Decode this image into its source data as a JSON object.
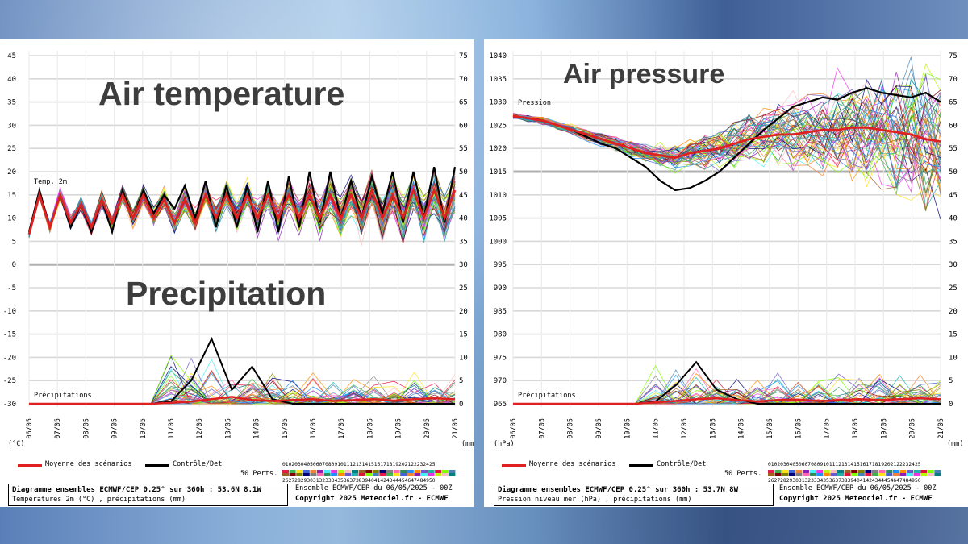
{
  "chart_data": [
    {
      "type": "line",
      "overlay_title_top": "Air temperature",
      "overlay_title_bottom": "Precipitation",
      "series_label_top": "Temp. 2m",
      "series_label_bottom": "Précipitations",
      "left_axis_ticks": [
        45,
        40,
        35,
        30,
        25,
        20,
        15,
        10,
        5,
        0,
        -5,
        -10,
        -15,
        -20,
        -25,
        -30
      ],
      "right_axis_ticks": [
        75,
        70,
        65,
        60,
        55,
        50,
        45,
        40,
        35,
        30,
        25,
        20,
        15,
        10,
        5,
        0
      ],
      "left_unit": "(°C)",
      "right_unit": "(mm)",
      "x_ticks": [
        "06/05",
        "07/05",
        "08/05",
        "09/05",
        "10/05",
        "11/05",
        "12/05",
        "13/05",
        "14/05",
        "15/05",
        "16/05",
        "17/05",
        "18/05",
        "19/05",
        "20/05",
        "21/05"
      ],
      "ylim_left": [
        -30,
        45
      ],
      "ylim_right": [
        0,
        75
      ],
      "series": [
        {
          "name": "Moyenne des scénarios",
          "color": "#e02020",
          "values": [
            6.5,
            15,
            8,
            15,
            9,
            13,
            8,
            14,
            9,
            15,
            10,
            15,
            10,
            14,
            9,
            14,
            9,
            15,
            10,
            15,
            10,
            15,
            10,
            15,
            10,
            15,
            10,
            15,
            10,
            15,
            10,
            15,
            10,
            16,
            10,
            15,
            10,
            16,
            10,
            16,
            10,
            16
          ]
        },
        {
          "name": "Contrôle/Det",
          "color": "#000000",
          "values": [
            7,
            16,
            8,
            15,
            8,
            13,
            7,
            14,
            7,
            16,
            10,
            16,
            11,
            15,
            12,
            17,
            10,
            18,
            8,
            17,
            8,
            17,
            7,
            18,
            7,
            19,
            8,
            20,
            9,
            20,
            10,
            18,
            10,
            19,
            11,
            20,
            9,
            20,
            10,
            21,
            9,
            21
          ]
        }
      ],
      "precip_mean": [
        0,
        0,
        0,
        0,
        0,
        0,
        0,
        0.2,
        0.5,
        1,
        1.5,
        0.8,
        0.6,
        0.8,
        1,
        0.6,
        0.8,
        1,
        0.7,
        1,
        1.2,
        1
      ],
      "precip_control": [
        0,
        0,
        0,
        0,
        0,
        0,
        0,
        0.5,
        5,
        14,
        3,
        8,
        1,
        0,
        0,
        0,
        0,
        0,
        0,
        0,
        0,
        0
      ],
      "ensemble_label": "50 Perts.",
      "member_numbers_top": "01020304050607080910111213141516171819202122232425",
      "member_numbers_bottom": "26272829303132333435363738394041424344454647484950",
      "footer_title": "Diagramme ensembles ECMWF/CEP 0.25° sur 360h : 53.6N 8.1W",
      "footer_subtitle": "Températures 2m (°C) , précipitations (mm)",
      "footer_run": "Ensemble ECMWF/CEP du 06/05/2025 - 00Z",
      "footer_copyright": "Copyright 2025 Meteociel.fr - ECMWF"
    },
    {
      "type": "line",
      "overlay_title_top": "Air pressure",
      "series_label_top": "Pression",
      "series_label_bottom": "Précipitations",
      "left_axis_ticks": [
        1040,
        1035,
        1030,
        1025,
        1020,
        1015,
        1010,
        1005,
        1000,
        995,
        990,
        985,
        980,
        975,
        970,
        965
      ],
      "right_axis_ticks": [
        75,
        70,
        65,
        60,
        55,
        50,
        45,
        40,
        35,
        30,
        25,
        20,
        15,
        10,
        5,
        0
      ],
      "left_unit": "(hPa)",
      "right_unit": "(mm)",
      "x_ticks": [
        "06/05",
        "07/05",
        "08/05",
        "09/05",
        "10/05",
        "11/05",
        "12/05",
        "13/05",
        "14/05",
        "15/05",
        "16/05",
        "17/05",
        "18/05",
        "19/05",
        "20/05",
        "21/05"
      ],
      "ylim_left": [
        965,
        1040
      ],
      "ylim_right": [
        0,
        75
      ],
      "series": [
        {
          "name": "Moyenne des scénarios",
          "color": "#e02020",
          "values": [
            1027,
            1026.5,
            1026,
            1025,
            1024,
            1023,
            1022,
            1021,
            1020,
            1019,
            1018.5,
            1018,
            1019,
            1019.5,
            1020,
            1021,
            1022,
            1022.5,
            1023,
            1023,
            1023.5,
            1024,
            1024,
            1024.5,
            1024.5,
            1024,
            1023.5,
            1023,
            1022,
            1021.5
          ]
        },
        {
          "name": "Contrôle/Det",
          "color": "#000000",
          "values": [
            1027,
            1026.5,
            1026,
            1025,
            1024,
            1022.5,
            1021,
            1020,
            1018,
            1016,
            1013,
            1011,
            1011.5,
            1013,
            1015,
            1018,
            1021,
            1024,
            1026.5,
            1029,
            1030,
            1031,
            1030.5,
            1032,
            1033,
            1032,
            1031.5,
            1031,
            1032,
            1030
          ]
        }
      ],
      "precip_mean": [
        0,
        0,
        0,
        0,
        0,
        0,
        0,
        0.3,
        0.6,
        1,
        1.2,
        0.8,
        0.5,
        0.8,
        0.9,
        0.6,
        0.8,
        1,
        0.8,
        1,
        1.2,
        1
      ],
      "precip_control": [
        0,
        0,
        0,
        0,
        0,
        0,
        0,
        0.5,
        4,
        9,
        3,
        1,
        0,
        0,
        0,
        0,
        0,
        0,
        0,
        0,
        0,
        0
      ],
      "ensemble_label": "50 Perts.",
      "member_numbers_top": "01020304050607080910111213141516171819202122232425",
      "member_numbers_bottom": "26272829303132333435363738394041424344454647484950",
      "footer_title": "Diagramme ensembles ECMWF/CEP 0.25° sur 360h : 53.7N 8W",
      "footer_subtitle": "Pression niveau mer (hPa) , précipitations (mm)",
      "footer_run": "Ensemble ECMWF/CEP du 06/05/2025 - 00Z",
      "footer_copyright": "Copyright 2025 Meteociel.fr - ECMWF"
    }
  ]
}
